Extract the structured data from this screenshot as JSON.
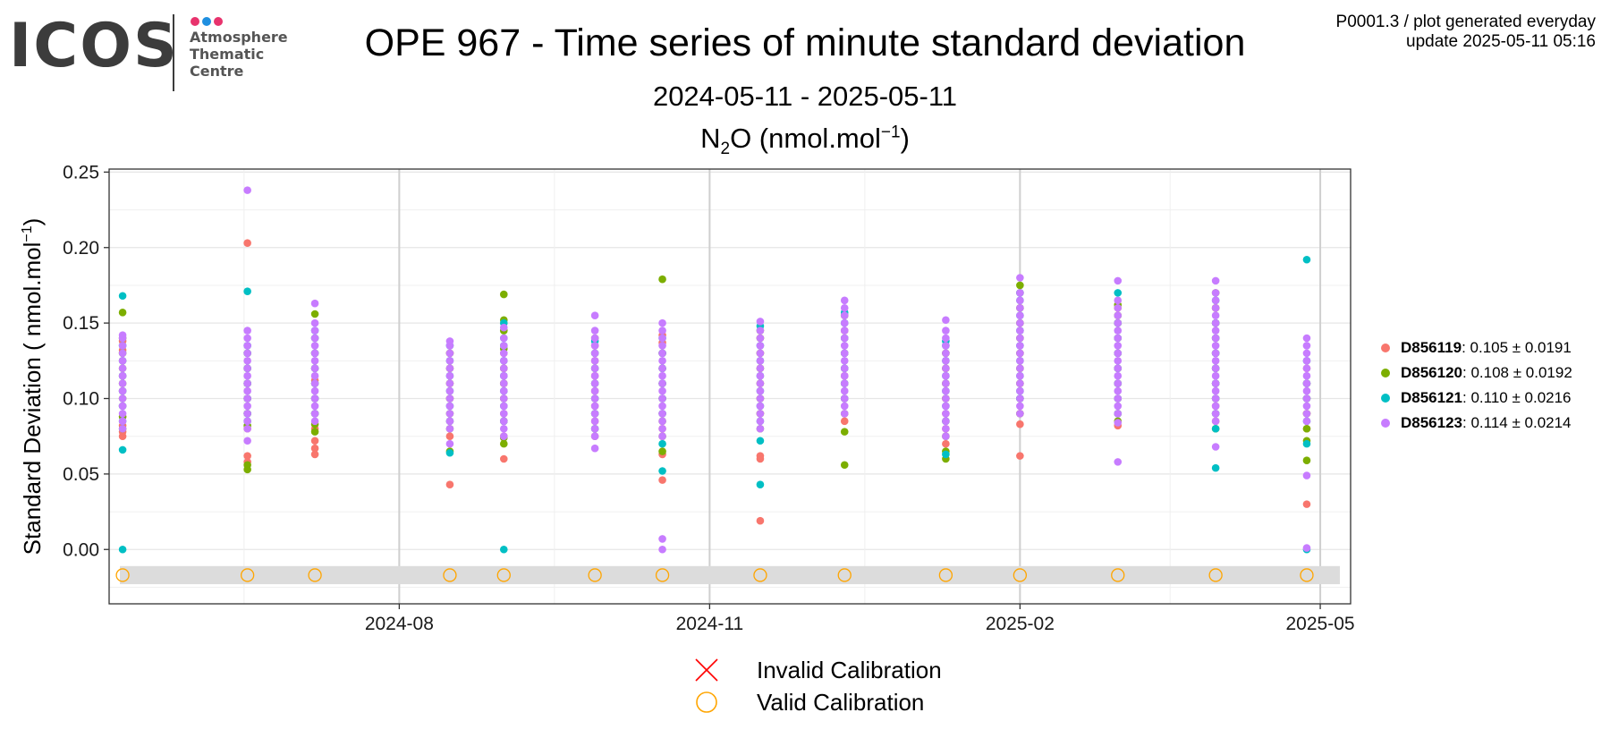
{
  "header": {
    "logo": {
      "wordmark": "ICOS",
      "subtitle_lines": [
        "Atmosphere",
        "Thematic",
        "Centre"
      ],
      "dot_colors": [
        "#e8336d",
        "#1f8fe0",
        "#e8336d"
      ]
    },
    "title": "OPE 967 - Time series of minute standard deviation",
    "subtitle": "2024-05-11 - 2025-05-11",
    "species": {
      "main": "N",
      "sub": "2",
      "rest": "O (nmol.mol",
      "sup": "−1",
      "end": ")"
    },
    "gen_info_line1": "P0001.3 / plot generated everyday",
    "gen_info_line2": "update  2025-05-11 05:16"
  },
  "legend": {
    "items": [
      {
        "id": "D856119",
        "stats": ": 0.105 ± 0.0191",
        "color": "#F8766D"
      },
      {
        "id": "D856120",
        "stats": ": 0.108 ± 0.0192",
        "color": "#7CAE00"
      },
      {
        "id": "D856121",
        "stats": ": 0.110 ± 0.0216",
        "color": "#00BFC4"
      },
      {
        "id": "D856123",
        "stats": ": 0.114 ± 0.0214",
        "color": "#C77CFF"
      }
    ]
  },
  "calibration_legend": {
    "invalid_label": "Invalid Calibration",
    "valid_label": "Valid Calibration",
    "invalid_color": "#ff0000",
    "valid_color": "#ffa500"
  },
  "chart_data": {
    "type": "scatter",
    "ylabel": "Standard Deviation ( nmol.mol−1)",
    "y_ticks": [
      "0.00",
      "0.05",
      "0.10",
      "0.15",
      "0.20",
      "0.25"
    ],
    "ylim": [
      -0.036,
      0.252
    ],
    "xlim": [
      "2024-05-07",
      "2025-05-10"
    ],
    "x_ticks": [
      "2024-08",
      "2024-11",
      "2025-02",
      "2025-05"
    ],
    "x_tick_dates": [
      "2024-08-01",
      "2024-11-01",
      "2025-02-01",
      "2025-05-01"
    ],
    "grid": true,
    "calibration_band": {
      "y_from": -0.023,
      "y_to": -0.011
    },
    "valid_calibration_dates": [
      "2024-05-11",
      "2024-06-17",
      "2024-07-07",
      "2024-08-16",
      "2024-09-01",
      "2024-09-28",
      "2024-10-18",
      "2024-11-16",
      "2024-12-11",
      "2025-01-10",
      "2025-02-01",
      "2025-03-02",
      "2025-03-31",
      "2025-04-27"
    ],
    "invalid_calibration_dates": [],
    "series": [
      {
        "name": "D856119",
        "color": "#F8766D",
        "groups": [
          {
            "date": "2024-05-11",
            "values": [
              0.075,
              0.078,
              0.082,
              0.088,
              0.095,
              0.105,
              0.115,
              0.125,
              0.132,
              0.138
            ]
          },
          {
            "date": "2024-06-17",
            "values": [
              0.062,
              0.058,
              0.08,
              0.09,
              0.1,
              0.11,
              0.12,
              0.13,
              0.203
            ]
          },
          {
            "date": "2024-07-07",
            "values": [
              0.063,
              0.067,
              0.072,
              0.08,
              0.09,
              0.1,
              0.112,
              0.12,
              0.13
            ]
          },
          {
            "date": "2024-08-16",
            "values": [
              0.043,
              0.075,
              0.085,
              0.1,
              0.11,
              0.12,
              0.13
            ]
          },
          {
            "date": "2024-09-01",
            "values": [
              0.06,
              0.075,
              0.085,
              0.09,
              0.1,
              0.11,
              0.12,
              0.13
            ]
          },
          {
            "date": "2024-09-28",
            "values": [
              0.075,
              0.085,
              0.095,
              0.105,
              0.115,
              0.125,
              0.135
            ]
          },
          {
            "date": "2024-10-18",
            "values": [
              0.046,
              0.063,
              0.08,
              0.09,
              0.1,
              0.11,
              0.12,
              0.13,
              0.137,
              0.142
            ]
          },
          {
            "date": "2024-11-16",
            "values": [
              0.019,
              0.06,
              0.062,
              0.09,
              0.1,
              0.11,
              0.12,
              0.13,
              0.14
            ]
          },
          {
            "date": "2024-12-11",
            "values": [
              0.085,
              0.1,
              0.115,
              0.13,
              0.145
            ]
          },
          {
            "date": "2025-01-10",
            "values": [
              0.07,
              0.08,
              0.09,
              0.1,
              0.11,
              0.12,
              0.13
            ]
          },
          {
            "date": "2025-02-01",
            "values": [
              0.062,
              0.083,
              0.09,
              0.1,
              0.11,
              0.12,
              0.13,
              0.14,
              0.15,
              0.16
            ]
          },
          {
            "date": "2025-03-02",
            "values": [
              0.082,
              0.09,
              0.1,
              0.11,
              0.12,
              0.13,
              0.14,
              0.15,
              0.16
            ]
          },
          {
            "date": "2025-03-31",
            "values": [
              0.085,
              0.095,
              0.1,
              0.11,
              0.12,
              0.13,
              0.14,
              0.15,
              0.16
            ]
          },
          {
            "date": "2025-04-27",
            "values": [
              0.03,
              0.08,
              0.09,
              0.1,
              0.11,
              0.12
            ]
          }
        ]
      },
      {
        "name": "D856120",
        "color": "#7CAE00",
        "groups": [
          {
            "date": "2024-05-11",
            "values": [
              0.08,
              0.088,
              0.1,
              0.11,
              0.12,
              0.13,
              0.14,
              0.157
            ]
          },
          {
            "date": "2024-06-17",
            "values": [
              0.053,
              0.056,
              0.082,
              0.09,
              0.1,
              0.11,
              0.12,
              0.13
            ]
          },
          {
            "date": "2024-07-07",
            "values": [
              0.078,
              0.083,
              0.09,
              0.1,
              0.11,
              0.12,
              0.13,
              0.14,
              0.156
            ]
          },
          {
            "date": "2024-08-16",
            "values": [
              0.065,
              0.08,
              0.09,
              0.1,
              0.11,
              0.12,
              0.13
            ]
          },
          {
            "date": "2024-09-01",
            "values": [
              0.07,
              0.074,
              0.085,
              0.1,
              0.11,
              0.12,
              0.133,
              0.145,
              0.152,
              0.169
            ]
          },
          {
            "date": "2024-09-28",
            "values": [
              0.08,
              0.09,
              0.1,
              0.11,
              0.12,
              0.13,
              0.14
            ]
          },
          {
            "date": "2024-10-18",
            "values": [
              0.065,
              0.075,
              0.085,
              0.1,
              0.11,
              0.12,
              0.13,
              0.179
            ]
          },
          {
            "date": "2024-11-16",
            "values": [
              0.08,
              0.09,
              0.1,
              0.11,
              0.12,
              0.13,
              0.14,
              0.145
            ]
          },
          {
            "date": "2024-12-11",
            "values": [
              0.056,
              0.078,
              0.09,
              0.1,
              0.11,
              0.12,
              0.13,
              0.14,
              0.155
            ]
          },
          {
            "date": "2025-01-10",
            "values": [
              0.06,
              0.065,
              0.075,
              0.085,
              0.1,
              0.11,
              0.12,
              0.13
            ]
          },
          {
            "date": "2025-02-01",
            "values": [
              0.09,
              0.1,
              0.11,
              0.12,
              0.13,
              0.14,
              0.15,
              0.16,
              0.17,
              0.175
            ]
          },
          {
            "date": "2025-03-02",
            "values": [
              0.085,
              0.09,
              0.1,
              0.11,
              0.12,
              0.13,
              0.14,
              0.15,
              0.155,
              0.162
            ]
          },
          {
            "date": "2025-03-31",
            "values": [
              0.08,
              0.09,
              0.1,
              0.11,
              0.12,
              0.13,
              0.14,
              0.15,
              0.16,
              0.17
            ]
          },
          {
            "date": "2025-04-27",
            "values": [
              0.059,
              0.072,
              0.08,
              0.09,
              0.1,
              0.11
            ]
          }
        ]
      },
      {
        "name": "D856121",
        "color": "#00BFC4",
        "groups": [
          {
            "date": "2024-05-11",
            "values": [
              0.0,
              0.066,
              0.085,
              0.095,
              0.105,
              0.115,
              0.125,
              0.135,
              0.168
            ]
          },
          {
            "date": "2024-06-17",
            "values": [
              0.085,
              0.09,
              0.1,
              0.11,
              0.12,
              0.13,
              0.135,
              0.171
            ]
          },
          {
            "date": "2024-07-07",
            "values": [
              0.09,
              0.1,
              0.11,
              0.12,
              0.13,
              0.14,
              0.145
            ]
          },
          {
            "date": "2024-08-16",
            "values": [
              0.064,
              0.085,
              0.095,
              0.105,
              0.115,
              0.125,
              0.135
            ]
          },
          {
            "date": "2024-09-01",
            "values": [
              0.0,
              0.085,
              0.095,
              0.105,
              0.115,
              0.125,
              0.135,
              0.14,
              0.15
            ]
          },
          {
            "date": "2024-09-28",
            "values": [
              0.08,
              0.09,
              0.1,
              0.11,
              0.12,
              0.13,
              0.138
            ]
          },
          {
            "date": "2024-10-18",
            "values": [
              0.052,
              0.07,
              0.09,
              0.1,
              0.11,
              0.12,
              0.13,
              0.14
            ]
          },
          {
            "date": "2024-11-16",
            "values": [
              0.043,
              0.072,
              0.085,
              0.095,
              0.105,
              0.115,
              0.125,
              0.135,
              0.148
            ]
          },
          {
            "date": "2024-12-11",
            "values": [
              0.1,
              0.11,
              0.12,
              0.13,
              0.14,
              0.15,
              0.157
            ]
          },
          {
            "date": "2025-01-10",
            "values": [
              0.063,
              0.085,
              0.095,
              0.105,
              0.115,
              0.125,
              0.135,
              0.138
            ]
          },
          {
            "date": "2025-02-01",
            "values": [
              0.1,
              0.105,
              0.115,
              0.125,
              0.135,
              0.145,
              0.155,
              0.165,
              0.17
            ]
          },
          {
            "date": "2025-03-02",
            "values": [
              0.09,
              0.1,
              0.11,
              0.12,
              0.13,
              0.14,
              0.15,
              0.17
            ]
          },
          {
            "date": "2025-03-31",
            "values": [
              0.054,
              0.08,
              0.09,
              0.1,
              0.11,
              0.12,
              0.13,
              0.14,
              0.15,
              0.165
            ]
          },
          {
            "date": "2025-04-27",
            "values": [
              0.0,
              0.07,
              0.085,
              0.1,
              0.11,
              0.125,
              0.192
            ]
          }
        ]
      },
      {
        "name": "D856123",
        "color": "#C77CFF",
        "groups": [
          {
            "date": "2024-05-11",
            "values": [
              0.08,
              0.085,
              0.09,
              0.095,
              0.1,
              0.105,
              0.11,
              0.115,
              0.12,
              0.125,
              0.13,
              0.135,
              0.14,
              0.142
            ]
          },
          {
            "date": "2024-06-17",
            "values": [
              0.072,
              0.08,
              0.085,
              0.09,
              0.095,
              0.1,
              0.105,
              0.11,
              0.115,
              0.12,
              0.125,
              0.13,
              0.135,
              0.14,
              0.145,
              0.238
            ]
          },
          {
            "date": "2024-07-07",
            "values": [
              0.085,
              0.09,
              0.095,
              0.1,
              0.105,
              0.11,
              0.115,
              0.12,
              0.125,
              0.13,
              0.135,
              0.14,
              0.145,
              0.15,
              0.163
            ]
          },
          {
            "date": "2024-08-16",
            "values": [
              0.07,
              0.08,
              0.085,
              0.09,
              0.095,
              0.1,
              0.105,
              0.11,
              0.115,
              0.12,
              0.125,
              0.13,
              0.135,
              0.138
            ]
          },
          {
            "date": "2024-09-01",
            "values": [
              0.075,
              0.08,
              0.085,
              0.09,
              0.095,
              0.1,
              0.105,
              0.11,
              0.115,
              0.12,
              0.125,
              0.13,
              0.135,
              0.14,
              0.147
            ]
          },
          {
            "date": "2024-09-28",
            "values": [
              0.067,
              0.075,
              0.08,
              0.085,
              0.09,
              0.095,
              0.1,
              0.105,
              0.11,
              0.115,
              0.12,
              0.125,
              0.13,
              0.135,
              0.14,
              0.145,
              0.155
            ]
          },
          {
            "date": "2024-10-18",
            "values": [
              0.0,
              0.007,
              0.075,
              0.08,
              0.085,
              0.09,
              0.095,
              0.1,
              0.105,
              0.11,
              0.115,
              0.12,
              0.125,
              0.13,
              0.135,
              0.14,
              0.145,
              0.15
            ]
          },
          {
            "date": "2024-11-16",
            "values": [
              0.08,
              0.085,
              0.09,
              0.095,
              0.1,
              0.105,
              0.11,
              0.115,
              0.12,
              0.125,
              0.13,
              0.135,
              0.14,
              0.145,
              0.151
            ]
          },
          {
            "date": "2024-12-11",
            "values": [
              0.09,
              0.095,
              0.1,
              0.105,
              0.11,
              0.115,
              0.12,
              0.125,
              0.13,
              0.135,
              0.14,
              0.145,
              0.15,
              0.155,
              0.16,
              0.165
            ]
          },
          {
            "date": "2025-01-10",
            "values": [
              0.075,
              0.08,
              0.085,
              0.09,
              0.095,
              0.1,
              0.105,
              0.11,
              0.115,
              0.12,
              0.125,
              0.13,
              0.135,
              0.14,
              0.145,
              0.152
            ]
          },
          {
            "date": "2025-02-01",
            "values": [
              0.09,
              0.095,
              0.1,
              0.105,
              0.11,
              0.115,
              0.12,
              0.125,
              0.13,
              0.135,
              0.14,
              0.145,
              0.15,
              0.155,
              0.16,
              0.165,
              0.17,
              0.18
            ]
          },
          {
            "date": "2025-03-02",
            "values": [
              0.058,
              0.084,
              0.09,
              0.095,
              0.1,
              0.105,
              0.11,
              0.115,
              0.12,
              0.125,
              0.13,
              0.135,
              0.14,
              0.145,
              0.15,
              0.155,
              0.16,
              0.165,
              0.178
            ]
          },
          {
            "date": "2025-03-31",
            "values": [
              0.068,
              0.085,
              0.09,
              0.095,
              0.1,
              0.105,
              0.11,
              0.115,
              0.12,
              0.125,
              0.13,
              0.135,
              0.14,
              0.145,
              0.15,
              0.155,
              0.16,
              0.165,
              0.17,
              0.178
            ]
          },
          {
            "date": "2025-04-27",
            "values": [
              0.001,
              0.049,
              0.085,
              0.09,
              0.095,
              0.1,
              0.105,
              0.11,
              0.115,
              0.12,
              0.125,
              0.13,
              0.135,
              0.14
            ]
          }
        ]
      }
    ]
  }
}
